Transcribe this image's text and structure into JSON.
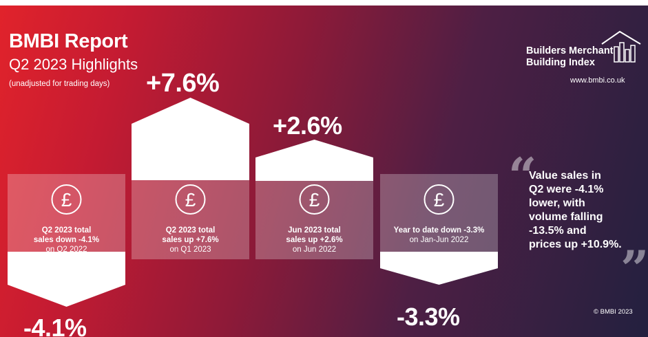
{
  "header": {
    "title": "BMBI Report",
    "subtitle": "Q2 2023 Highlights",
    "note": "(unadjusted for trading days)"
  },
  "brand": {
    "line1": "Builders Merchant",
    "line2": "Building Index",
    "url": "www.bmbi.co.uk",
    "copyright": "© BMBI 2023"
  },
  "stats": [
    {
      "value": "-4.1%",
      "line1": "Q2 2023 total",
      "line2": "sales down -4.1%",
      "line3": "on Q2 2022",
      "direction": "down"
    },
    {
      "value": "+7.6%",
      "line1": "Q2 2023 total",
      "line2": "sales up +7.6%",
      "line3": "on Q1 2023",
      "direction": "up"
    },
    {
      "value": "+2.6%",
      "line1": "Jun 2023 total",
      "line2": "sales up +2.6%",
      "line3": "on Jun 2022",
      "direction": "up"
    },
    {
      "value": "-3.3%",
      "line1": "",
      "line2": "Year to date down -3.3%",
      "line3": "on Jan-Jun 2022",
      "direction": "down"
    }
  ],
  "quote": {
    "line1": "Value sales in",
    "line2": "Q2 were -4.1%",
    "line3": "lower, with",
    "line4": "volume falling",
    "line5": "-13.5% and",
    "line6": "prices up +10.9%."
  },
  "icons": [
    "pound-icon",
    "open-quote-icon",
    "close-quote-icon",
    "house-chart-logo-icon"
  ],
  "colors": {
    "gradient_start": "#e1232b",
    "gradient_end": "#23203f",
    "text": "#ffffff"
  }
}
